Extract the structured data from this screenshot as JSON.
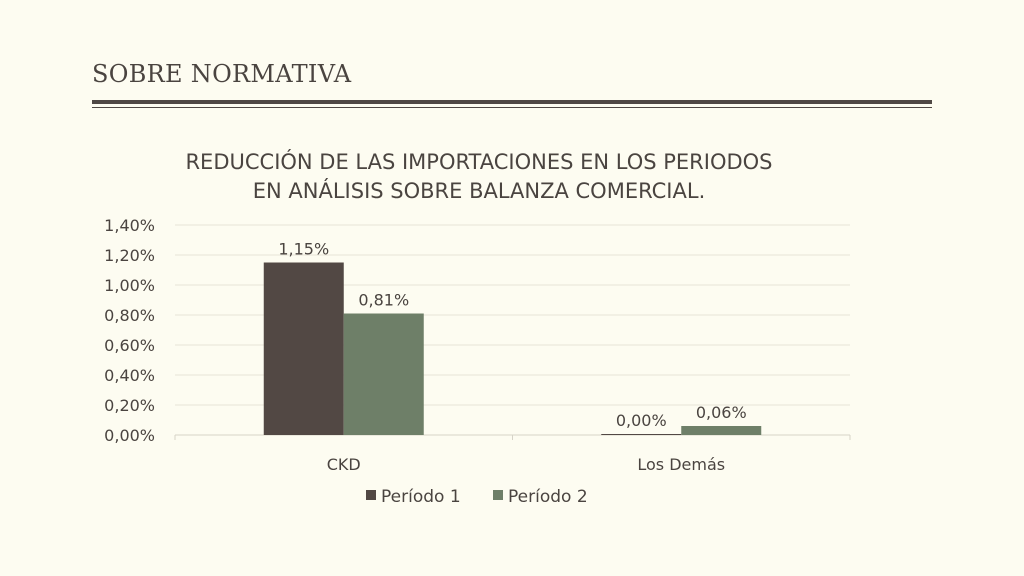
{
  "header": {
    "title": "SOBRE NORMATIVA"
  },
  "colors": {
    "background": "#fdfcf1",
    "period1": "#524844",
    "period2": "#6e7f68",
    "text": "#4a4440",
    "rule": "#4f4845"
  },
  "chart_data": {
    "type": "bar",
    "title_lines": [
      "REDUCCIÓN DE LAS IMPORTACIONES   EN LOS PERIODOS",
      "EN ANÁLISIS SOBRE BALANZA COMERCIAL."
    ],
    "categories": [
      "CKD",
      "Los  Demás"
    ],
    "series": [
      {
        "name": "Período  1",
        "values": [
          1.15,
          0.0
        ],
        "labels": [
          "1,15%",
          "0,00%"
        ]
      },
      {
        "name": "Período  2",
        "values": [
          0.81,
          0.06
        ],
        "labels": [
          "0,81%",
          "0,06%"
        ]
      }
    ],
    "ylim": [
      0,
      1.4
    ],
    "yticks": [
      "0,00%",
      "0,20%",
      "0,40%",
      "0,60%",
      "0,80%",
      "1,00%",
      "1,20%",
      "1,40%"
    ],
    "grid": true,
    "legend_position": "bottom"
  }
}
